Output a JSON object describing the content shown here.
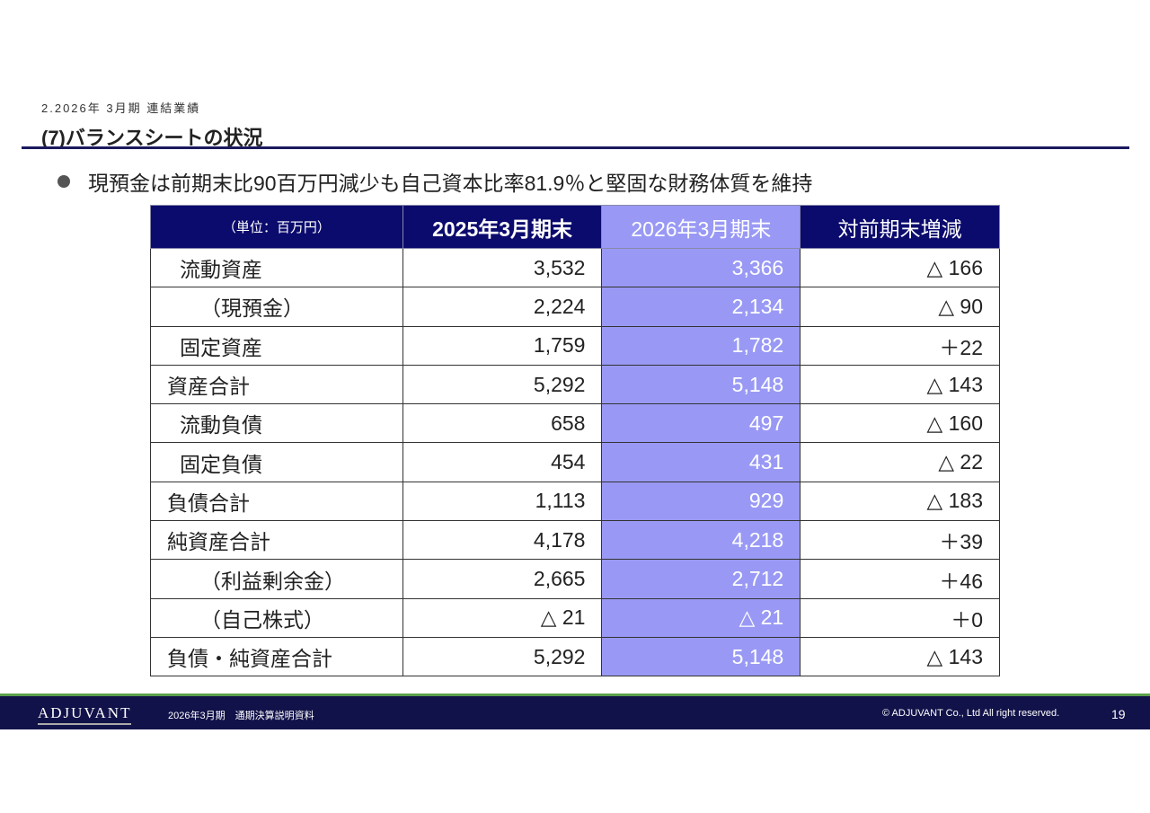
{
  "header": {
    "section": "2.2026年 3月期 連結業績",
    "title": "(7)バランスシートの状況"
  },
  "bullet": "現預金は前期末比90百万円減少も自己資本比率81.9％と堅固な財務体質を維持",
  "table": {
    "headers": [
      "（単位：百万円）",
      "2025年3月期末",
      "2026年3月期末",
      "対前期末増減"
    ],
    "rows": [
      {
        "label": "流動資産",
        "indent": 1,
        "v2025": "3,532",
        "v2026": "3,366",
        "diff": "△ 166"
      },
      {
        "label": "（現預金）",
        "indent": 2,
        "v2025": "2,224",
        "v2026": "2,134",
        "diff": "△ 90"
      },
      {
        "label": "固定資産",
        "indent": 1,
        "v2025": "1,759",
        "v2026": "1,782",
        "diff": "＋22"
      },
      {
        "label": "資産合計",
        "indent": 0,
        "v2025": "5,292",
        "v2026": "5,148",
        "diff": "△ 143"
      },
      {
        "label": "流動負債",
        "indent": 1,
        "v2025": "658",
        "v2026": "497",
        "diff": "△ 160"
      },
      {
        "label": "固定負債",
        "indent": 1,
        "v2025": "454",
        "v2026": "431",
        "diff": "△ 22"
      },
      {
        "label": "負債合計",
        "indent": 0,
        "v2025": "1,113",
        "v2026": "929",
        "diff": "△ 183"
      },
      {
        "label": "純資産合計",
        "indent": 0,
        "v2025": "4,178",
        "v2026": "4,218",
        "diff": "＋39"
      },
      {
        "label": "（利益剰余金）",
        "indent": 2,
        "v2025": "2,665",
        "v2026": "2,712",
        "diff": "＋46"
      },
      {
        "label": "（自己株式）",
        "indent": 2,
        "v2025": "△ 21",
        "v2026": "△ 21",
        "diff": "＋0"
      },
      {
        "label": "負債・純資産合計",
        "indent": 0,
        "v2025": "5,292",
        "v2026": "5,148",
        "diff": "△ 143"
      }
    ]
  },
  "footer": {
    "logo": "ADJUVANT",
    "doc": "2026年3月期　通期決算説明資料",
    "copyright": "© ADJUVANT Co., Ltd All right reserved.",
    "page": "19"
  },
  "colors": {
    "navy": "#0b0b6e",
    "highlight": "#9999f5",
    "footer": "#12124a",
    "accent_green": "#5aa04a"
  }
}
